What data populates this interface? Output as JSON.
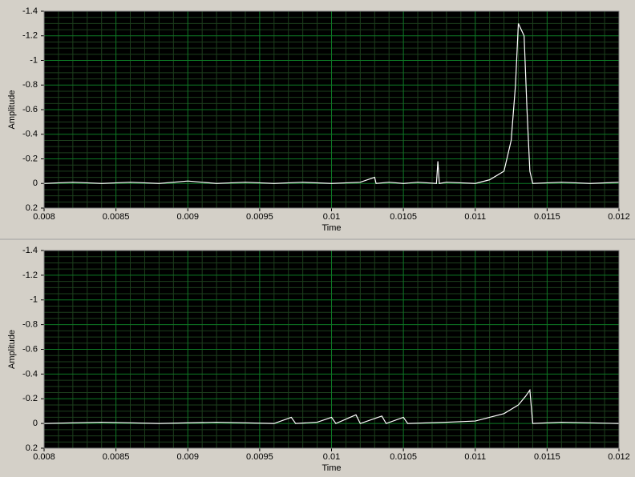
{
  "chart_data": [
    {
      "type": "line",
      "x_label": "Time",
      "y_label": "Amplitude",
      "color": "#ffffff",
      "grid": true,
      "xlim": [
        0.008,
        0.012
      ],
      "xticks": [
        0.008,
        0.0085,
        0.009,
        0.0095,
        0.01,
        0.0105,
        0.011,
        0.0115,
        0.012
      ],
      "ylim": [
        0.2,
        -1.4
      ],
      "yticks": [
        -1.4,
        -1.2,
        -1,
        -0.8,
        -0.6,
        -0.4,
        -0.2,
        0,
        0.2
      ],
      "x": [
        0.008,
        0.0082,
        0.0084,
        0.0086,
        0.0088,
        0.009,
        0.0092,
        0.0094,
        0.0096,
        0.0098,
        0.01,
        0.0102,
        0.0103,
        0.01031,
        0.0104,
        0.0105,
        0.0106,
        0.01073,
        0.01074,
        0.01075,
        0.0108,
        0.011,
        0.0111,
        0.0112,
        0.01125,
        0.01128,
        0.0113,
        0.01132,
        0.01134,
        0.01136,
        0.01138,
        0.0114,
        0.0116,
        0.0118,
        0.012
      ],
      "values": [
        0,
        -0.01,
        0,
        -0.01,
        0,
        -0.02,
        0,
        -0.01,
        0,
        -0.01,
        0,
        -0.01,
        -0.05,
        0,
        -0.01,
        0,
        -0.01,
        0,
        -0.18,
        0,
        -0.01,
        0,
        -0.03,
        -0.1,
        -0.35,
        -0.8,
        -1.3,
        -1.25,
        -1.2,
        -0.6,
        -0.1,
        0,
        -0.01,
        0,
        -0.01
      ]
    },
    {
      "type": "line",
      "x_label": "Time",
      "y_label": "Amplitude",
      "color": "#ffffff",
      "grid": true,
      "xlim": [
        0.008,
        0.012
      ],
      "xticks": [
        0.008,
        0.0085,
        0.009,
        0.0095,
        0.01,
        0.0105,
        0.011,
        0.0115,
        0.012
      ],
      "ylim": [
        0.2,
        -1.4
      ],
      "yticks": [
        -1.4,
        -1.2,
        -1,
        -0.8,
        -0.6,
        -0.4,
        -0.2,
        0,
        0.2
      ],
      "x": [
        0.008,
        0.0084,
        0.0088,
        0.0092,
        0.0096,
        0.00972,
        0.00975,
        0.0099,
        0.01,
        0.01003,
        0.01017,
        0.0102,
        0.01035,
        0.01038,
        0.0105,
        0.01053,
        0.0108,
        0.011,
        0.0111,
        0.0112,
        0.0113,
        0.01135,
        0.01138,
        0.0114,
        0.0116,
        0.012
      ],
      "values": [
        0,
        -0.01,
        0,
        -0.01,
        0,
        -0.05,
        0,
        -0.01,
        -0.05,
        0,
        -0.07,
        0,
        -0.06,
        0,
        -0.05,
        0,
        -0.01,
        -0.02,
        -0.05,
        -0.08,
        -0.15,
        -0.22,
        -0.27,
        0,
        -0.01,
        0
      ]
    }
  ]
}
